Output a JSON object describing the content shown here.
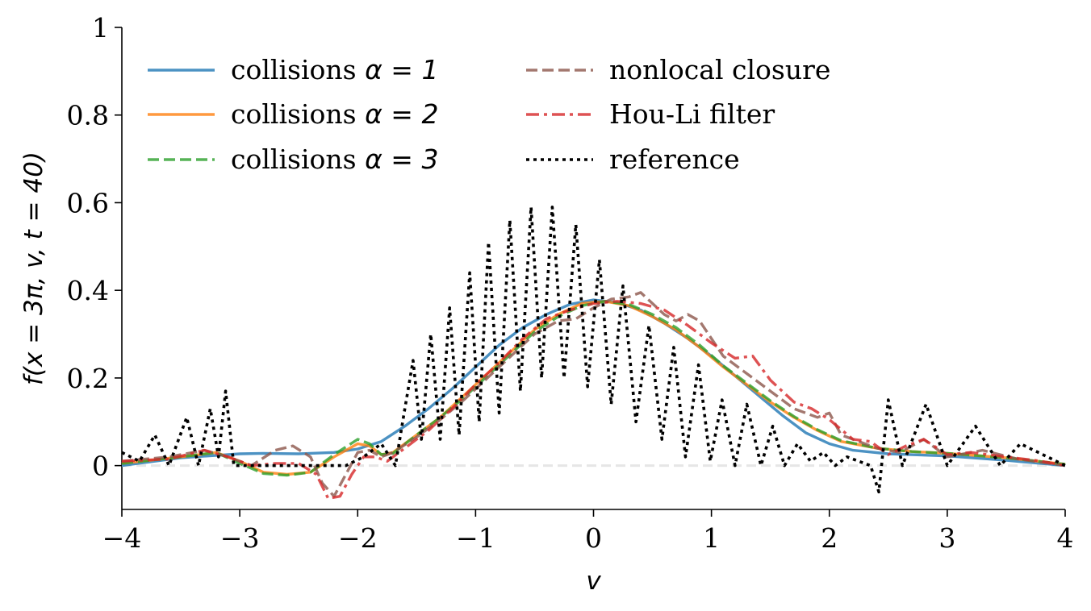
{
  "chart_data": {
    "type": "line",
    "xlabel": "v",
    "ylabel": "f(x = 3π, v, t = 40)",
    "xlim": [
      -4,
      4
    ],
    "ylim": [
      -0.1,
      1.0
    ],
    "xticks": [
      -4,
      -3,
      -2,
      -1,
      0,
      1,
      2,
      3,
      4
    ],
    "xtick_labels": [
      "−4",
      "−3",
      "−2",
      "−1",
      "0",
      "1",
      "2",
      "3",
      "4"
    ],
    "yticks": [
      0,
      0.2,
      0.4,
      0.6,
      0.8,
      1.0
    ],
    "ytick_labels": [
      "0",
      "0.2",
      "0.4",
      "0.6",
      "0.8",
      "1"
    ],
    "grid": false,
    "zero_line": true,
    "legend": {
      "location": "upper-left",
      "columns": 2
    },
    "series": [
      {
        "name": "collisions α = 1",
        "label_prefix": "collisions ",
        "label_math": "α = 1",
        "color": "#1f77b4",
        "style": "solid",
        "x": [
          -4.0,
          -3.5,
          -3.0,
          -2.8,
          -2.5,
          -2.2,
          -2.0,
          -1.8,
          -1.6,
          -1.4,
          -1.2,
          -1.0,
          -0.8,
          -0.6,
          -0.4,
          -0.2,
          0.0,
          0.2,
          0.4,
          0.6,
          0.8,
          1.0,
          1.2,
          1.4,
          1.6,
          1.8,
          2.0,
          2.2,
          2.5,
          3.0,
          3.5,
          4.0
        ],
        "y": [
          0.0,
          0.018,
          0.027,
          0.028,
          0.027,
          0.03,
          0.038,
          0.055,
          0.09,
          0.13,
          0.175,
          0.225,
          0.275,
          0.315,
          0.345,
          0.368,
          0.378,
          0.372,
          0.355,
          0.325,
          0.29,
          0.25,
          0.205,
          0.16,
          0.115,
          0.075,
          0.05,
          0.035,
          0.027,
          0.022,
          0.012,
          0.0
        ]
      },
      {
        "name": "collisions α = 2",
        "label_prefix": "collisions ",
        "label_math": "α = 2",
        "color": "#ff7f0e",
        "style": "solid",
        "x": [
          -4.0,
          -3.5,
          -3.2,
          -3.0,
          -2.8,
          -2.6,
          -2.4,
          -2.2,
          -2.0,
          -1.9,
          -1.8,
          -1.7,
          -1.5,
          -1.3,
          -1.1,
          -0.9,
          -0.7,
          -0.5,
          -0.3,
          -0.1,
          0.1,
          0.3,
          0.5,
          0.7,
          0.9,
          1.1,
          1.3,
          1.5,
          1.7,
          1.9,
          2.1,
          2.4,
          2.7,
          3.0,
          3.5,
          4.0
        ],
        "y": [
          0.005,
          0.02,
          0.03,
          0.01,
          -0.015,
          -0.02,
          -0.015,
          0.02,
          0.05,
          0.045,
          0.025,
          0.03,
          0.07,
          0.11,
          0.16,
          0.21,
          0.26,
          0.31,
          0.345,
          0.37,
          0.375,
          0.365,
          0.34,
          0.31,
          0.27,
          0.225,
          0.185,
          0.145,
          0.11,
          0.08,
          0.055,
          0.04,
          0.032,
          0.028,
          0.018,
          0.003
        ]
      },
      {
        "name": "collisions α = 3",
        "label_prefix": "collisions ",
        "label_math": "α = 3",
        "color": "#2ca02c",
        "style": "dashed",
        "x": [
          -4.0,
          -3.5,
          -3.2,
          -3.0,
          -2.8,
          -2.6,
          -2.4,
          -2.2,
          -2.0,
          -1.9,
          -1.8,
          -1.7,
          -1.5,
          -1.3,
          -1.1,
          -0.9,
          -0.7,
          -0.5,
          -0.3,
          -0.1,
          0.1,
          0.3,
          0.5,
          0.7,
          0.9,
          1.1,
          1.3,
          1.5,
          1.7,
          1.9,
          2.1,
          2.4,
          2.7,
          3.0,
          3.5,
          4.0
        ],
        "y": [
          0.005,
          0.02,
          0.03,
          0.005,
          -0.018,
          -0.022,
          -0.015,
          0.025,
          0.06,
          0.05,
          0.025,
          0.028,
          0.07,
          0.11,
          0.155,
          0.205,
          0.255,
          0.305,
          0.34,
          0.365,
          0.375,
          0.368,
          0.345,
          0.315,
          0.275,
          0.228,
          0.188,
          0.148,
          0.112,
          0.082,
          0.057,
          0.04,
          0.032,
          0.028,
          0.018,
          0.003
        ]
      },
      {
        "name": "nonlocal closure",
        "label_prefix": "nonlocal closure",
        "label_math": "",
        "color": "#8c564b",
        "style": "dashed",
        "x": [
          -4.0,
          -3.6,
          -3.3,
          -3.1,
          -2.9,
          -2.7,
          -2.55,
          -2.4,
          -2.3,
          -2.2,
          -2.1,
          -2.0,
          -1.9,
          -1.8,
          -1.7,
          -1.5,
          -1.3,
          -1.1,
          -0.9,
          -0.7,
          -0.5,
          -0.3,
          -0.15,
          0.0,
          0.15,
          0.3,
          0.4,
          0.5,
          0.6,
          0.7,
          0.8,
          0.9,
          1.0,
          1.1,
          1.3,
          1.5,
          1.7,
          1.9,
          2.0,
          2.1,
          2.25,
          2.4,
          2.6,
          2.8,
          3.0,
          3.3,
          3.6,
          4.0
        ],
        "y": [
          0.01,
          0.02,
          0.035,
          0.02,
          0.0,
          0.035,
          0.045,
          0.02,
          -0.04,
          -0.07,
          -0.02,
          0.03,
          0.035,
          0.02,
          0.03,
          0.065,
          0.105,
          0.15,
          0.2,
          0.25,
          0.3,
          0.33,
          0.335,
          0.36,
          0.38,
          0.385,
          0.395,
          0.37,
          0.345,
          0.33,
          0.345,
          0.33,
          0.29,
          0.25,
          0.21,
          0.17,
          0.13,
          0.11,
          0.12,
          0.07,
          0.055,
          0.04,
          0.03,
          0.06,
          0.02,
          0.035,
          0.015,
          0.0
        ]
      },
      {
        "name": "Hou-Li filter",
        "label_prefix": "Hou-Li filter",
        "label_math": "",
        "color": "#d62728",
        "style": "dashdot",
        "x": [
          -4.0,
          -3.6,
          -3.3,
          -3.1,
          -2.9,
          -2.7,
          -2.5,
          -2.35,
          -2.25,
          -2.15,
          -2.05,
          -1.95,
          -1.85,
          -1.75,
          -1.6,
          -1.4,
          -1.2,
          -1.0,
          -0.8,
          -0.6,
          -0.4,
          -0.2,
          0.0,
          0.2,
          0.4,
          0.6,
          0.8,
          1.0,
          1.2,
          1.35,
          1.5,
          1.7,
          1.85,
          2.0,
          2.2,
          2.35,
          2.5,
          2.65,
          2.8,
          3.0,
          3.2,
          3.5,
          3.8,
          4.0
        ],
        "y": [
          0.01,
          0.015,
          0.035,
          0.02,
          0.0,
          0.005,
          0.005,
          -0.02,
          -0.075,
          -0.07,
          -0.02,
          0.02,
          0.02,
          0.01,
          0.04,
          0.08,
          0.13,
          0.185,
          0.235,
          0.29,
          0.335,
          0.355,
          0.37,
          0.375,
          0.37,
          0.355,
          0.32,
          0.28,
          0.245,
          0.25,
          0.195,
          0.145,
          0.13,
          0.105,
          0.06,
          0.055,
          0.025,
          0.045,
          0.06,
          0.025,
          0.03,
          0.02,
          0.01,
          0.0
        ]
      },
      {
        "name": "reference",
        "label_prefix": "reference",
        "label_math": "",
        "color": "#000000",
        "style": "dotted",
        "x": [
          -4.0,
          -3.85,
          -3.72,
          -3.6,
          -3.45,
          -3.35,
          -3.25,
          -3.18,
          -3.12,
          -3.05,
          -2.9,
          -2.6,
          -2.3,
          -2.1,
          -1.95,
          -1.8,
          -1.68,
          -1.6,
          -1.53,
          -1.46,
          -1.38,
          -1.3,
          -1.22,
          -1.14,
          -1.05,
          -0.97,
          -0.89,
          -0.8,
          -0.71,
          -0.62,
          -0.53,
          -0.44,
          -0.35,
          -0.25,
          -0.15,
          -0.05,
          0.05,
          0.15,
          0.25,
          0.36,
          0.47,
          0.58,
          0.68,
          0.78,
          0.89,
          0.99,
          1.09,
          1.2,
          1.3,
          1.42,
          1.52,
          1.62,
          1.73,
          1.84,
          1.95,
          2.05,
          2.15,
          2.25,
          2.35,
          2.42,
          2.5,
          2.62,
          2.82,
          3.0,
          3.24,
          3.45,
          3.62,
          3.85,
          4.0
        ],
        "y": [
          0.03,
          0.01,
          0.07,
          0.0,
          0.11,
          0.0,
          0.13,
          0.02,
          0.17,
          0.0,
          0.0,
          0.0,
          0.0,
          0.0,
          0.02,
          0.05,
          0.0,
          0.13,
          0.24,
          0.06,
          0.3,
          0.06,
          0.36,
          0.07,
          0.44,
          0.1,
          0.51,
          0.12,
          0.56,
          0.17,
          0.59,
          0.2,
          0.59,
          0.2,
          0.55,
          0.18,
          0.47,
          0.14,
          0.41,
          0.1,
          0.32,
          0.06,
          0.27,
          0.02,
          0.23,
          0.01,
          0.15,
          0.0,
          0.14,
          0.0,
          0.09,
          0.0,
          0.05,
          0.01,
          0.03,
          0.0,
          0.02,
          0.01,
          0.0,
          -0.06,
          0.15,
          0.0,
          0.14,
          0.0,
          0.09,
          0.0,
          0.05,
          0.02,
          0.0
        ]
      }
    ]
  }
}
